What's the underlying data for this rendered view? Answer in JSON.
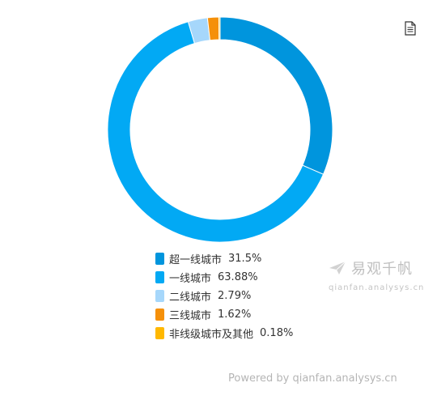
{
  "chart_data": {
    "type": "pie",
    "variant": "donut",
    "title": "",
    "slices": [
      {
        "label": "超一线城市",
        "value": 31.5,
        "display": "31.5%",
        "color": "#0095dd"
      },
      {
        "label": "一线城市",
        "value": 63.88,
        "display": "63.88%",
        "color": "#02a9f4"
      },
      {
        "label": "二线城市",
        "value": 2.79,
        "display": "2.79%",
        "color": "#a6d7fb"
      },
      {
        "label": "三线城市",
        "value": 1.62,
        "display": "1.62%",
        "color": "#f5900a"
      },
      {
        "label": "非线级城市及其他",
        "value": 0.18,
        "display": "0.18%",
        "color": "#ffb800"
      }
    ],
    "legend_position": "bottom"
  },
  "toolbar": {
    "export_icon": "document-icon"
  },
  "watermark": {
    "brand": "易观千帆",
    "url": "qianfan.analysys.cn",
    "logo_icon": "paper-plane-logo"
  },
  "footer": {
    "powered_by": "Powered by qianfan.analysys.cn"
  }
}
